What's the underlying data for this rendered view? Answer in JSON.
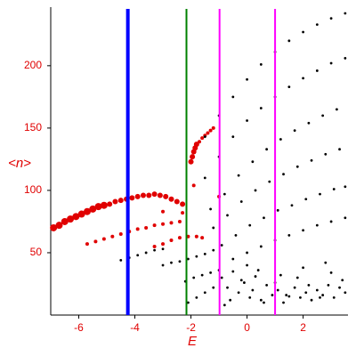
{
  "chart_data": {
    "type": "scatter",
    "xlabel": "E",
    "ylabel": "<n>",
    "xlim": [
      -7,
      3.6
    ],
    "ylim": [
      0,
      247
    ],
    "xticks": [
      -6,
      -4,
      -2,
      0,
      2
    ],
    "yticks": [
      50,
      100,
      150,
      200
    ],
    "vlines": [
      {
        "x": -4.25,
        "color": "#0000ff"
      },
      {
        "x": -2.16,
        "color": "#008000"
      },
      {
        "x": -0.98,
        "color": "#ff00ff"
      },
      {
        "x": 1.0,
        "color": "#ff00ff"
      }
    ],
    "series": [
      {
        "color": "#e00000",
        "size": 4,
        "x": [
          -6.9,
          -6.7,
          -6.5,
          -6.3,
          -6.1,
          -5.9,
          -5.7,
          -5.5,
          -5.3,
          -5.1
        ],
        "values": [
          70,
          72,
          75,
          77,
          79,
          81,
          83,
          85,
          87,
          88
        ]
      },
      {
        "color": "#e00000",
        "size": 3,
        "x": [
          -4.9,
          -4.7,
          -4.5,
          -4.3,
          -4.1,
          -3.9,
          -3.7,
          -3.5,
          -3.3,
          -3.1,
          -2.9,
          -2.7,
          -2.5,
          -2.3,
          -2.0,
          -1.95,
          -1.9,
          -1.85,
          -1.8
        ],
        "values": [
          89,
          91,
          92,
          93,
          94,
          95,
          96,
          96,
          97,
          96,
          95,
          93,
          91,
          89,
          123,
          127,
          131,
          134,
          137
        ]
      },
      {
        "color": "#e00000",
        "size": 2,
        "x": [
          -5.7,
          -5.4,
          -5.1,
          -4.8,
          -4.5,
          -4.2,
          -3.9,
          -3.6,
          -3.3,
          -3.0,
          -2.7,
          -2.4,
          -3.3,
          -3.0,
          -2.7,
          -2.4,
          -2.1,
          -1.8,
          -1.6,
          -1.7,
          -1.6,
          -1.5,
          -1.4,
          -1.3,
          -1.2,
          -1.9,
          -2.3,
          -3.0,
          -1.0
        ],
        "values": [
          57,
          59,
          61,
          63,
          65,
          67,
          69,
          70,
          72,
          73,
          74,
          75,
          55,
          57,
          60,
          62,
          63,
          63,
          62,
          139,
          142,
          144,
          146,
          148,
          150,
          104,
          82,
          83,
          95
        ]
      },
      {
        "color": "#000000",
        "size": 1.4,
        "x": [
          -4.5,
          -4.2,
          -3.9,
          -3.6,
          -3.3,
          -3.0,
          -3.0,
          -2.7,
          -2.4,
          -2.1,
          -1.8,
          -1.5,
          -1.2,
          -2.2,
          -1.9,
          -1.6,
          -1.3,
          -1.0,
          -2.1,
          -1.8,
          -1.5,
          -1.2
        ],
        "values": [
          44,
          46,
          48,
          50,
          52,
          53,
          40,
          42,
          43,
          45,
          47,
          49,
          52,
          27,
          30,
          32,
          34,
          36,
          10,
          14,
          18,
          22
        ]
      },
      {
        "color": "#000000",
        "size": 1.4,
        "x": [
          -1.5,
          -1.0,
          -0.5,
          0,
          0.5,
          1.0,
          1.5,
          2.0,
          2.5,
          3.0,
          3.5,
          -1.5,
          -1.0,
          -0.5,
          0,
          0.5,
          1.0,
          1.5,
          2.0,
          2.5,
          3.0,
          3.5
        ],
        "values": [
          143,
          160,
          175,
          189,
          201,
          211,
          220,
          227,
          233,
          238,
          242,
          110,
          127,
          143,
          156,
          166,
          175,
          183,
          190,
          196,
          202,
          206
        ]
      },
      {
        "color": "#000000",
        "size": 1.4,
        "x": [
          -1.3,
          -0.8,
          -0.3,
          0.2,
          0.7,
          1.2,
          1.7,
          2.2,
          2.7,
          3.2,
          -1.2,
          -0.7,
          -0.2,
          0.3,
          0.8,
          1.3,
          1.8,
          2.3,
          2.8,
          3.3
        ],
        "values": [
          85,
          97,
          112,
          123,
          133,
          141,
          148,
          154,
          160,
          165,
          70,
          80,
          91,
          100,
          107,
          113,
          119,
          124,
          129,
          133
        ]
      },
      {
        "color": "#000000",
        "size": 1.4,
        "x": [
          -0.9,
          -0.4,
          0.1,
          0.6,
          1.1,
          1.6,
          2.1,
          2.6,
          3.1,
          3.5,
          -0.5,
          0,
          0.5,
          1.0,
          1.5,
          2.0,
          2.5,
          3.0,
          3.5
        ],
        "values": [
          56,
          64,
          72,
          78,
          84,
          88,
          93,
          97,
          101,
          103,
          45,
          50,
          55,
          60,
          64,
          68,
          72,
          75,
          78
        ]
      },
      {
        "color": "#000000",
        "size": 1.4,
        "x": [
          -0.9,
          -0.7,
          -0.5,
          -0.3,
          -0.1,
          0.1,
          0.3,
          0.5,
          0.7,
          0.9,
          1.1,
          1.3,
          1.5,
          1.7,
          1.9,
          2.1,
          2.3,
          2.5,
          2.7,
          2.9,
          3.1,
          3.3,
          3.5,
          -0.6,
          -0.2,
          0.2,
          0.6,
          1.0,
          1.4,
          1.8,
          2.2,
          2.6,
          3.0,
          3.4,
          -0.8,
          0.0,
          0.4,
          1.2,
          2.0,
          2.8
        ],
        "values": [
          30,
          22,
          35,
          18,
          26,
          14,
          31,
          12,
          24,
          16,
          20,
          10,
          15,
          22,
          14,
          18,
          12,
          20,
          16,
          24,
          14,
          22,
          18,
          12,
          28,
          20,
          10,
          26,
          16,
          30,
          24,
          14,
          34,
          28,
          8,
          40,
          36,
          32,
          38,
          42
        ]
      }
    ]
  }
}
